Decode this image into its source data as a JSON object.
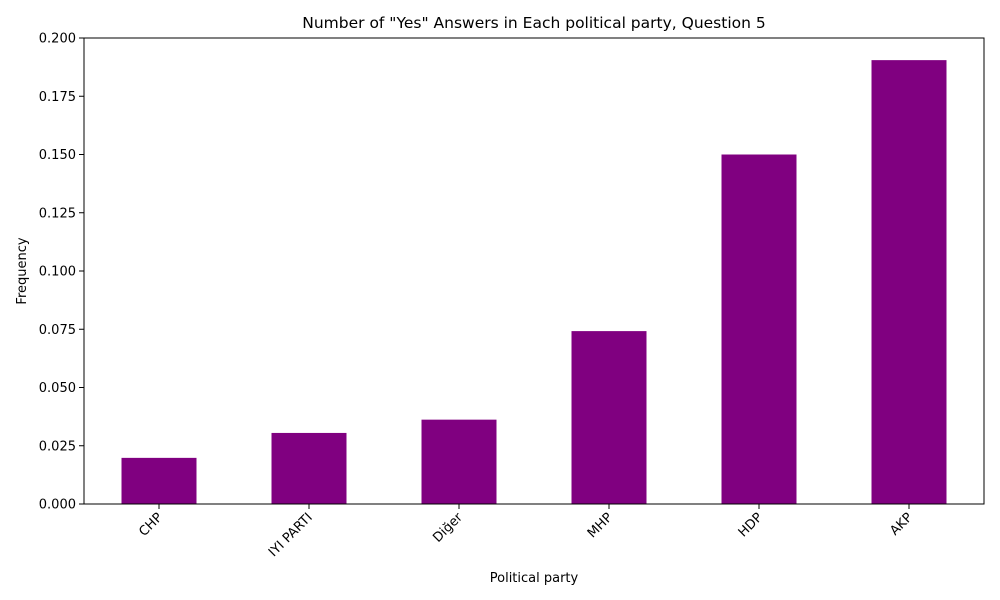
{
  "chart_data": {
    "type": "bar",
    "title": "Number of \"Yes\" Answers in Each political party, Question 5",
    "xlabel": "Political party",
    "ylabel": "Frequency",
    "categories": [
      "CHP",
      "IYI PARTI",
      "Diğer",
      "MHP",
      "HDP",
      "AKP"
    ],
    "values": [
      0.0198,
      0.0305,
      0.0362,
      0.0742,
      0.15,
      0.1905
    ],
    "ylim": [
      0,
      0.2
    ],
    "yticks": [
      "0.000",
      "0.025",
      "0.050",
      "0.075",
      "0.100",
      "0.125",
      "0.150",
      "0.175",
      "0.200"
    ],
    "bar_color": "#800080",
    "grid": false,
    "legend": "none"
  }
}
